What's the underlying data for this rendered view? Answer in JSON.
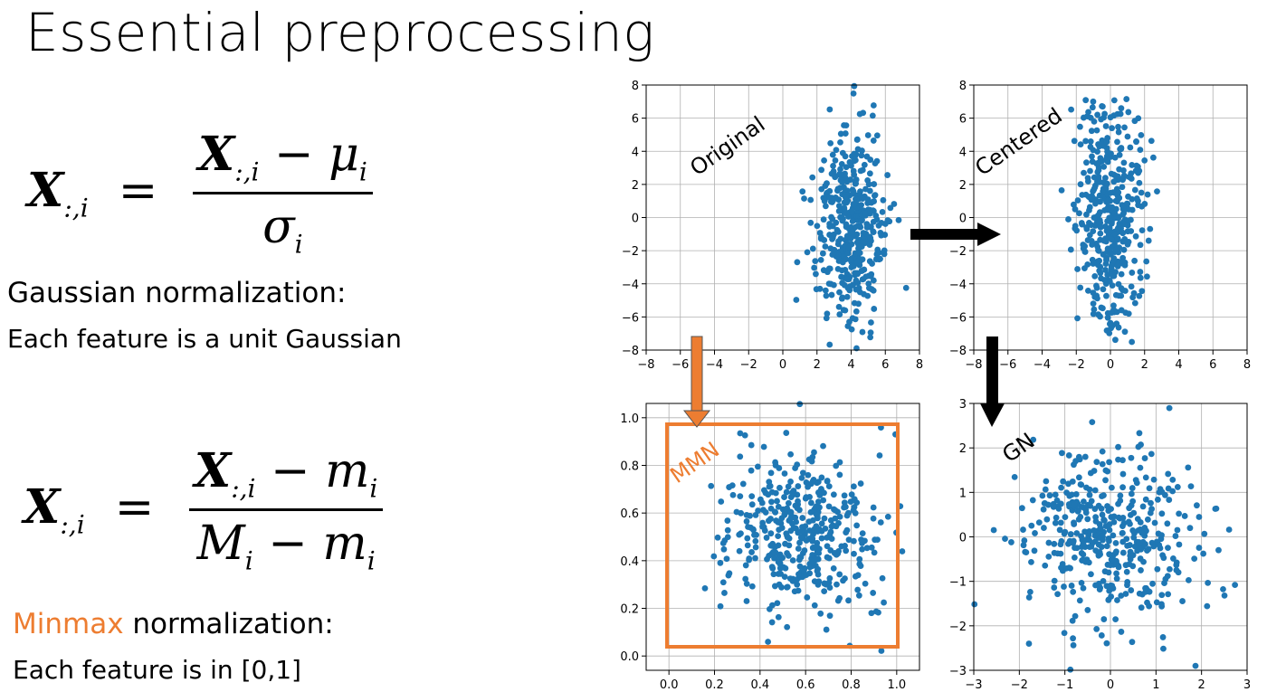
{
  "title": "Essential preprocessing",
  "formulas": {
    "gaussian": {
      "lhs": "X",
      "lhs_sub": ":,i",
      "num": "X",
      "num_sub": ":,i",
      "num_rest": " − μ",
      "num_rest_sub": "i",
      "den": "σ",
      "den_sub": "i"
    },
    "minmax": {
      "lhs": "X",
      "lhs_sub": ":,i",
      "num": "X",
      "num_sub": ":,i",
      "num_rest": " − m",
      "num_rest_sub": "i",
      "den": "M",
      "den_sub": "i",
      "den_rest": " − m",
      "den_rest_sub": "i"
    }
  },
  "gaussian_label": "Gaussian normalization:",
  "gaussian_desc": "Each feature is a unit Gaussian",
  "minmax_label_colored": "Minmax",
  "minmax_label_rest": " normalization:",
  "minmax_desc": "Each feature is in [0,1]",
  "colors": {
    "points": "#1f77b4",
    "accent": "#ED7D31",
    "arrow": "#000000"
  },
  "chart_data": [
    {
      "type": "scatter",
      "annotation": "Original",
      "xlim": [
        -8,
        8
      ],
      "ylim": [
        -8,
        8
      ],
      "xticks": [
        "−8",
        "−6",
        "−4",
        "−2",
        "0",
        "2",
        "4",
        "6",
        "8"
      ],
      "yticks": [
        "−8",
        "−6",
        "−4",
        "−2",
        "0",
        "2",
        "4",
        "6",
        "8"
      ],
      "grid": true,
      "center": [
        4,
        -1
      ],
      "spread": [
        1,
        3.2
      ]
    },
    {
      "type": "scatter",
      "annotation": "Centered",
      "xlim": [
        -8,
        8
      ],
      "ylim": [
        -8,
        8
      ],
      "xticks": [
        "−8",
        "−6",
        "−4",
        "−2",
        "0",
        "2",
        "4",
        "6",
        "8"
      ],
      "yticks": [
        "−8",
        "−6",
        "−4",
        "−2",
        "0",
        "2",
        "4",
        "6",
        "8"
      ],
      "grid": true,
      "center": [
        0,
        0
      ],
      "spread": [
        1,
        3.2
      ]
    },
    {
      "type": "scatter",
      "annotation": "MMN",
      "xlim": [
        -0.1,
        1.1
      ],
      "ylim": [
        -0.06,
        1.06
      ],
      "xticks": [
        "0.0",
        "0.2",
        "0.4",
        "0.6",
        "0.8",
        "1.0"
      ],
      "yticks": [
        "0.0",
        "0.2",
        "0.4",
        "0.6",
        "0.8",
        "1.0"
      ],
      "grid": true,
      "center": [
        0.58,
        0.52
      ],
      "spread": [
        0.18,
        0.18
      ]
    },
    {
      "type": "scatter",
      "annotation": "GN",
      "xlim": [
        -3,
        3
      ],
      "ylim": [
        -3,
        3
      ],
      "xticks": [
        "−3",
        "−2",
        "−1",
        "0",
        "1",
        "2",
        "3"
      ],
      "yticks": [
        "−3",
        "−2",
        "−1",
        "0",
        "1",
        "2",
        "3"
      ],
      "grid": true,
      "center": [
        0,
        0
      ],
      "spread": [
        1,
        1
      ]
    }
  ]
}
